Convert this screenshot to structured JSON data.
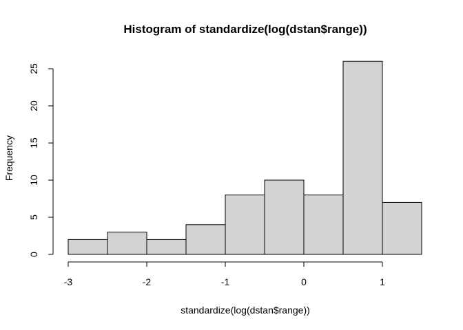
{
  "chart_data": {
    "type": "bar",
    "title": "Histogram of standardize(log(dstan$range))",
    "xlabel": "standardize(log(dstan$range))",
    "ylabel": "Frequency",
    "bins": [
      {
        "x0": -3.0,
        "x1": -2.5,
        "count": 2
      },
      {
        "x0": -2.5,
        "x1": -2.0,
        "count": 3
      },
      {
        "x0": -2.0,
        "x1": -1.5,
        "count": 2
      },
      {
        "x0": -1.5,
        "x1": -1.0,
        "count": 4
      },
      {
        "x0": -1.0,
        "x1": -0.5,
        "count": 8
      },
      {
        "x0": -0.5,
        "x1": 0.0,
        "count": 10
      },
      {
        "x0": 0.0,
        "x1": 0.5,
        "count": 8
      },
      {
        "x0": 0.5,
        "x1": 1.0,
        "count": 26
      },
      {
        "x0": 1.0,
        "x1": 1.5,
        "count": 7
      }
    ],
    "xticks": [
      -3,
      -2,
      -1,
      0,
      1
    ],
    "xtick_labels": [
      "-3",
      "-2",
      "-1",
      "0",
      "1"
    ],
    "yticks": [
      0,
      5,
      10,
      15,
      20,
      25
    ],
    "ytick_labels": [
      "0",
      "5",
      "10",
      "15",
      "20",
      "25"
    ],
    "xlim": [
      -3,
      1.5
    ],
    "ylim": [
      0,
      26
    ],
    "bar_fill": "#d3d3d3",
    "bar_stroke": "#000000",
    "grid": false
  }
}
